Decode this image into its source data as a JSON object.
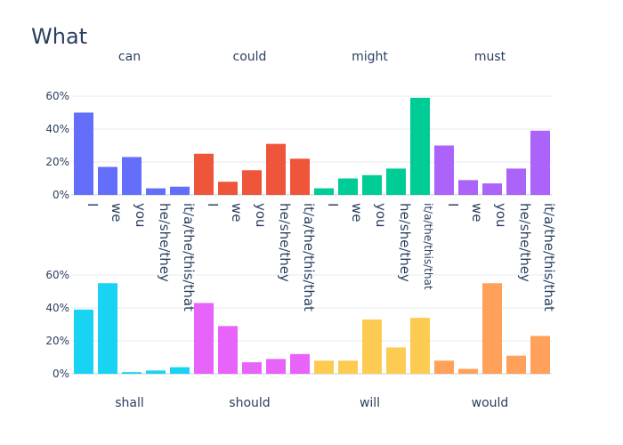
{
  "chart_data": {
    "type": "bar",
    "title": "What",
    "categories": [
      "I",
      "we",
      "you",
      "he/she/they",
      "it/a/the/this/that"
    ],
    "y_ticks": [
      "0%",
      "20%",
      "40%",
      "60%"
    ],
    "ylim": [
      0,
      65
    ],
    "grid": true,
    "facets": [
      {
        "name": "can",
        "color": "#636efa",
        "values": [
          50,
          17,
          23,
          4,
          5
        ]
      },
      {
        "name": "could",
        "color": "#ef553b",
        "values": [
          25,
          8,
          15,
          31,
          22
        ]
      },
      {
        "name": "might",
        "color": "#00cc96",
        "values": [
          4,
          10,
          12,
          16,
          59
        ]
      },
      {
        "name": "must",
        "color": "#ab63fa",
        "values": [
          30,
          9,
          7,
          16,
          39
        ]
      },
      {
        "name": "shall",
        "color": "#19d3f3",
        "values": [
          39,
          55,
          1,
          2,
          4
        ]
      },
      {
        "name": "should",
        "color": "#e763fa",
        "values": [
          43,
          29,
          7,
          9,
          12
        ]
      },
      {
        "name": "will",
        "color": "#fecb52",
        "values": [
          8,
          8,
          33,
          16,
          34
        ]
      },
      {
        "name": "would",
        "color": "#ffa15a",
        "values": [
          8,
          3,
          55,
          11,
          23
        ]
      }
    ]
  }
}
